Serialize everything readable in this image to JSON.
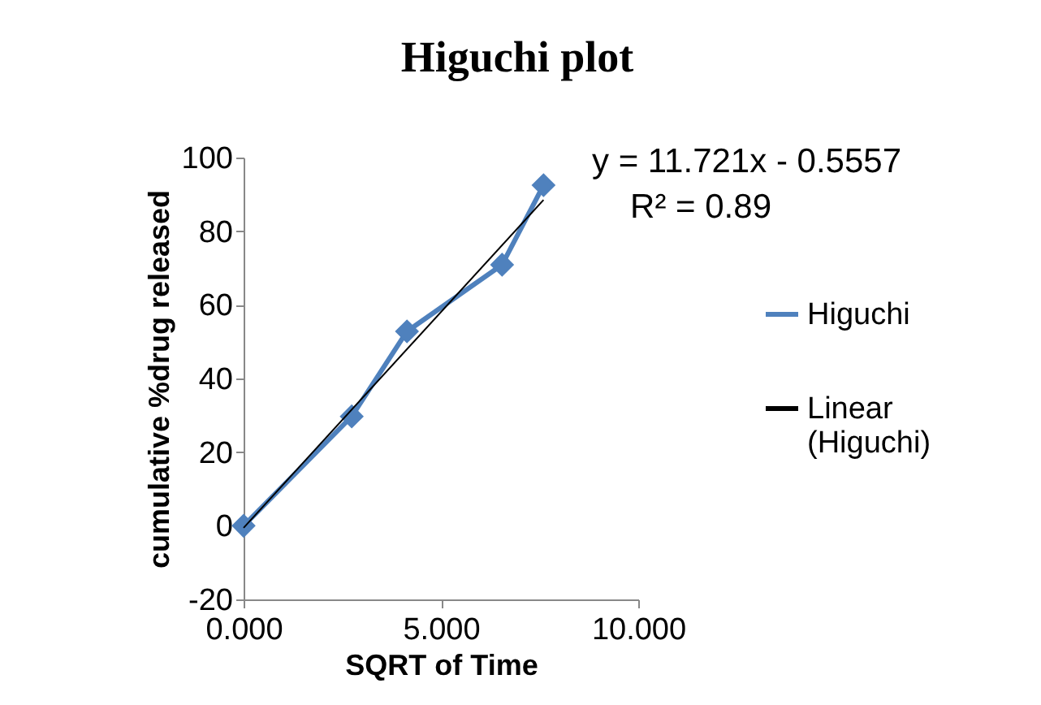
{
  "chart_data": {
    "type": "line",
    "title": "Higuchi plot",
    "xlabel": "SQRT of Time",
    "ylabel": "cumulative %drug released",
    "x": [
      0,
      2.74,
      4.14,
      6.55,
      7.6
    ],
    "series": [
      {
        "name": "Higuchi",
        "color": "#4f81bd",
        "values": [
          0,
          29.7,
          52.8,
          70.9,
          92.5
        ],
        "marker": "diamond"
      },
      {
        "name": "Linear (Higuchi)",
        "type": "line",
        "color": "#000000",
        "x": [
          0,
          7.6
        ],
        "values": [
          -0.5557,
          88.5
        ],
        "marker": "none"
      }
    ],
    "xlim": [
      0,
      10
    ],
    "xticks": [
      {
        "value": 0,
        "label": "0.000"
      },
      {
        "value": 5,
        "label": "5.000"
      },
      {
        "value": 10,
        "label": "10.000"
      }
    ],
    "ylim": [
      -20,
      100
    ],
    "yticks": [
      -20,
      0,
      20,
      40,
      60,
      80,
      100
    ],
    "grid": false,
    "legend": "right",
    "annotations": [
      "y = 11.721x - 0.5557",
      "R² = 0.89"
    ]
  }
}
